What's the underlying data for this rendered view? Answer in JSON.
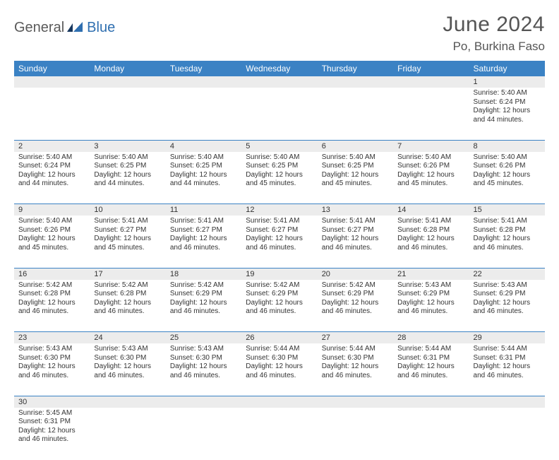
{
  "brand": {
    "part1": "General",
    "part2": "Blue"
  },
  "title": "June 2024",
  "location": "Po, Burkina Faso",
  "colors": {
    "header_bg": "#3b82c4",
    "header_text": "#ffffff",
    "daynum_bg": "#ececec",
    "border": "#3b82c4",
    "brand_gray": "#5a5a5a",
    "brand_blue": "#2f6fb0"
  },
  "weekdays": [
    "Sunday",
    "Monday",
    "Tuesday",
    "Wednesday",
    "Thursday",
    "Friday",
    "Saturday"
  ],
  "weeks": [
    {
      "nums": [
        "",
        "",
        "",
        "",
        "",
        "",
        "1"
      ],
      "cells": [
        null,
        null,
        null,
        null,
        null,
        null,
        {
          "sunrise": "Sunrise: 5:40 AM",
          "sunset": "Sunset: 6:24 PM",
          "day1": "Daylight: 12 hours",
          "day2": "and 44 minutes."
        }
      ]
    },
    {
      "nums": [
        "2",
        "3",
        "4",
        "5",
        "6",
        "7",
        "8"
      ],
      "cells": [
        {
          "sunrise": "Sunrise: 5:40 AM",
          "sunset": "Sunset: 6:24 PM",
          "day1": "Daylight: 12 hours",
          "day2": "and 44 minutes."
        },
        {
          "sunrise": "Sunrise: 5:40 AM",
          "sunset": "Sunset: 6:25 PM",
          "day1": "Daylight: 12 hours",
          "day2": "and 44 minutes."
        },
        {
          "sunrise": "Sunrise: 5:40 AM",
          "sunset": "Sunset: 6:25 PM",
          "day1": "Daylight: 12 hours",
          "day2": "and 44 minutes."
        },
        {
          "sunrise": "Sunrise: 5:40 AM",
          "sunset": "Sunset: 6:25 PM",
          "day1": "Daylight: 12 hours",
          "day2": "and 45 minutes."
        },
        {
          "sunrise": "Sunrise: 5:40 AM",
          "sunset": "Sunset: 6:25 PM",
          "day1": "Daylight: 12 hours",
          "day2": "and 45 minutes."
        },
        {
          "sunrise": "Sunrise: 5:40 AM",
          "sunset": "Sunset: 6:26 PM",
          "day1": "Daylight: 12 hours",
          "day2": "and 45 minutes."
        },
        {
          "sunrise": "Sunrise: 5:40 AM",
          "sunset": "Sunset: 6:26 PM",
          "day1": "Daylight: 12 hours",
          "day2": "and 45 minutes."
        }
      ]
    },
    {
      "nums": [
        "9",
        "10",
        "11",
        "12",
        "13",
        "14",
        "15"
      ],
      "cells": [
        {
          "sunrise": "Sunrise: 5:40 AM",
          "sunset": "Sunset: 6:26 PM",
          "day1": "Daylight: 12 hours",
          "day2": "and 45 minutes."
        },
        {
          "sunrise": "Sunrise: 5:41 AM",
          "sunset": "Sunset: 6:27 PM",
          "day1": "Daylight: 12 hours",
          "day2": "and 45 minutes."
        },
        {
          "sunrise": "Sunrise: 5:41 AM",
          "sunset": "Sunset: 6:27 PM",
          "day1": "Daylight: 12 hours",
          "day2": "and 46 minutes."
        },
        {
          "sunrise": "Sunrise: 5:41 AM",
          "sunset": "Sunset: 6:27 PM",
          "day1": "Daylight: 12 hours",
          "day2": "and 46 minutes."
        },
        {
          "sunrise": "Sunrise: 5:41 AM",
          "sunset": "Sunset: 6:27 PM",
          "day1": "Daylight: 12 hours",
          "day2": "and 46 minutes."
        },
        {
          "sunrise": "Sunrise: 5:41 AM",
          "sunset": "Sunset: 6:28 PM",
          "day1": "Daylight: 12 hours",
          "day2": "and 46 minutes."
        },
        {
          "sunrise": "Sunrise: 5:41 AM",
          "sunset": "Sunset: 6:28 PM",
          "day1": "Daylight: 12 hours",
          "day2": "and 46 minutes."
        }
      ]
    },
    {
      "nums": [
        "16",
        "17",
        "18",
        "19",
        "20",
        "21",
        "22"
      ],
      "cells": [
        {
          "sunrise": "Sunrise: 5:42 AM",
          "sunset": "Sunset: 6:28 PM",
          "day1": "Daylight: 12 hours",
          "day2": "and 46 minutes."
        },
        {
          "sunrise": "Sunrise: 5:42 AM",
          "sunset": "Sunset: 6:28 PM",
          "day1": "Daylight: 12 hours",
          "day2": "and 46 minutes."
        },
        {
          "sunrise": "Sunrise: 5:42 AM",
          "sunset": "Sunset: 6:29 PM",
          "day1": "Daylight: 12 hours",
          "day2": "and 46 minutes."
        },
        {
          "sunrise": "Sunrise: 5:42 AM",
          "sunset": "Sunset: 6:29 PM",
          "day1": "Daylight: 12 hours",
          "day2": "and 46 minutes."
        },
        {
          "sunrise": "Sunrise: 5:42 AM",
          "sunset": "Sunset: 6:29 PM",
          "day1": "Daylight: 12 hours",
          "day2": "and 46 minutes."
        },
        {
          "sunrise": "Sunrise: 5:43 AM",
          "sunset": "Sunset: 6:29 PM",
          "day1": "Daylight: 12 hours",
          "day2": "and 46 minutes."
        },
        {
          "sunrise": "Sunrise: 5:43 AM",
          "sunset": "Sunset: 6:29 PM",
          "day1": "Daylight: 12 hours",
          "day2": "and 46 minutes."
        }
      ]
    },
    {
      "nums": [
        "23",
        "24",
        "25",
        "26",
        "27",
        "28",
        "29"
      ],
      "cells": [
        {
          "sunrise": "Sunrise: 5:43 AM",
          "sunset": "Sunset: 6:30 PM",
          "day1": "Daylight: 12 hours",
          "day2": "and 46 minutes."
        },
        {
          "sunrise": "Sunrise: 5:43 AM",
          "sunset": "Sunset: 6:30 PM",
          "day1": "Daylight: 12 hours",
          "day2": "and 46 minutes."
        },
        {
          "sunrise": "Sunrise: 5:43 AM",
          "sunset": "Sunset: 6:30 PM",
          "day1": "Daylight: 12 hours",
          "day2": "and 46 minutes."
        },
        {
          "sunrise": "Sunrise: 5:44 AM",
          "sunset": "Sunset: 6:30 PM",
          "day1": "Daylight: 12 hours",
          "day2": "and 46 minutes."
        },
        {
          "sunrise": "Sunrise: 5:44 AM",
          "sunset": "Sunset: 6:30 PM",
          "day1": "Daylight: 12 hours",
          "day2": "and 46 minutes."
        },
        {
          "sunrise": "Sunrise: 5:44 AM",
          "sunset": "Sunset: 6:31 PM",
          "day1": "Daylight: 12 hours",
          "day2": "and 46 minutes."
        },
        {
          "sunrise": "Sunrise: 5:44 AM",
          "sunset": "Sunset: 6:31 PM",
          "day1": "Daylight: 12 hours",
          "day2": "and 46 minutes."
        }
      ]
    },
    {
      "nums": [
        "30",
        "",
        "",
        "",
        "",
        "",
        ""
      ],
      "cells": [
        {
          "sunrise": "Sunrise: 5:45 AM",
          "sunset": "Sunset: 6:31 PM",
          "day1": "Daylight: 12 hours",
          "day2": "and 46 minutes."
        },
        null,
        null,
        null,
        null,
        null,
        null
      ]
    }
  ]
}
